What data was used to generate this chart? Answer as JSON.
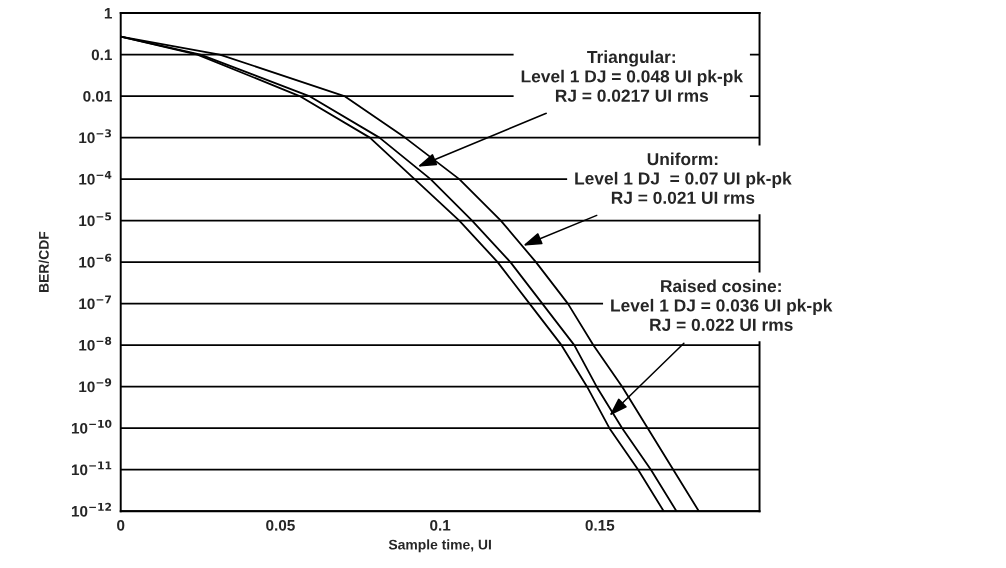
{
  "chart_data": {
    "type": "line",
    "xlabel": "Sample time, UI",
    "ylabel": "BER/CDF",
    "log": "y",
    "grid": "y",
    "legend": false,
    "marker": "none",
    "line_style": "solid",
    "xlim": [
      0,
      0.2
    ],
    "xticks": [
      0,
      0.05,
      0.1,
      0.15
    ],
    "ylim": [
      1e-12,
      1
    ],
    "yticks": [
      1,
      0.1,
      0.01,
      {
        "value": 0.001,
        "label": "10$^{−3}$"
      },
      {
        "value": 0.0001,
        "label": "10$^{−4}$"
      },
      {
        "value": 1e-05,
        "label": "10$^{−5}$"
      },
      {
        "value": 1e-06,
        "label": "10$^{−6}$"
      },
      {
        "value": 1e-07,
        "label": "10$^{−7}$"
      },
      {
        "value": 1e-08,
        "label": "10$^{−8}$"
      },
      {
        "value": 1e-09,
        "label": "10$^{−9}$"
      },
      {
        "value": 1e-10,
        "label": "10$^{−10}$"
      },
      {
        "value": 1e-11,
        "label": "10$^{−11}$"
      },
      {
        "value": 1e-12,
        "label": "10$^{−12}$"
      }
    ],
    "series": [
      {
        "color": "#000000",
        "x": [
          0,
          0.024,
          0.056,
          0.078,
          0.092,
          0.106,
          0.118,
          0.128,
          0.138,
          0.146,
          0.153,
          0.162,
          0.17
        ],
        "values": [
          0.27,
          0.1,
          0.01,
          0.001,
          0.0001,
          1e-05,
          1e-06,
          1e-07,
          1e-08,
          1e-09,
          1e-10,
          1e-11,
          1e-12
        ]
      },
      {
        "color": "#000000",
        "x": [
          0,
          0.025,
          0.059,
          0.081,
          0.097,
          0.11,
          0.122,
          0.132,
          0.142,
          0.149,
          0.157,
          0.166,
          0.174
        ],
        "values": [
          0.27,
          0.1,
          0.01,
          0.001,
          0.0001,
          1e-05,
          1e-06,
          1e-07,
          1e-08,
          1e-09,
          1e-10,
          1e-11,
          1e-12
        ]
      },
      {
        "color": "#000000",
        "x": [
          0,
          0.031,
          0.07,
          0.089,
          0.106,
          0.119,
          0.13,
          0.14,
          0.148,
          0.157,
          0.165,
          0.173,
          0.181
        ],
        "values": [
          0.27,
          0.1,
          0.01,
          0.001,
          0.0001,
          1e-05,
          1e-06,
          1e-07,
          1e-08,
          1e-09,
          1e-10,
          1e-11,
          1e-12
        ]
      }
    ],
    "annotations": [
      {
        "text": "Triangular:\nLevel 1 DJ = 0.048 UI pk-pk\nRJ = 0.0217 UI rms",
        "x": 0.093,
        "y": 0.0002
      },
      {
        "text": "Uniform:\nLevel 1 DJ  = 0.07 UI pk-pk\nRJ = 0.021 UI rms",
        "x": 0.126,
        "y": 2.5e-06
      },
      {
        "text": "Raised cosine:\nLevel 1 DJ = 0.036 UI pk-pk\nRJ = 0.022 UI rms",
        "x": 0.153,
        "y": 2e-10
      }
    ]
  }
}
